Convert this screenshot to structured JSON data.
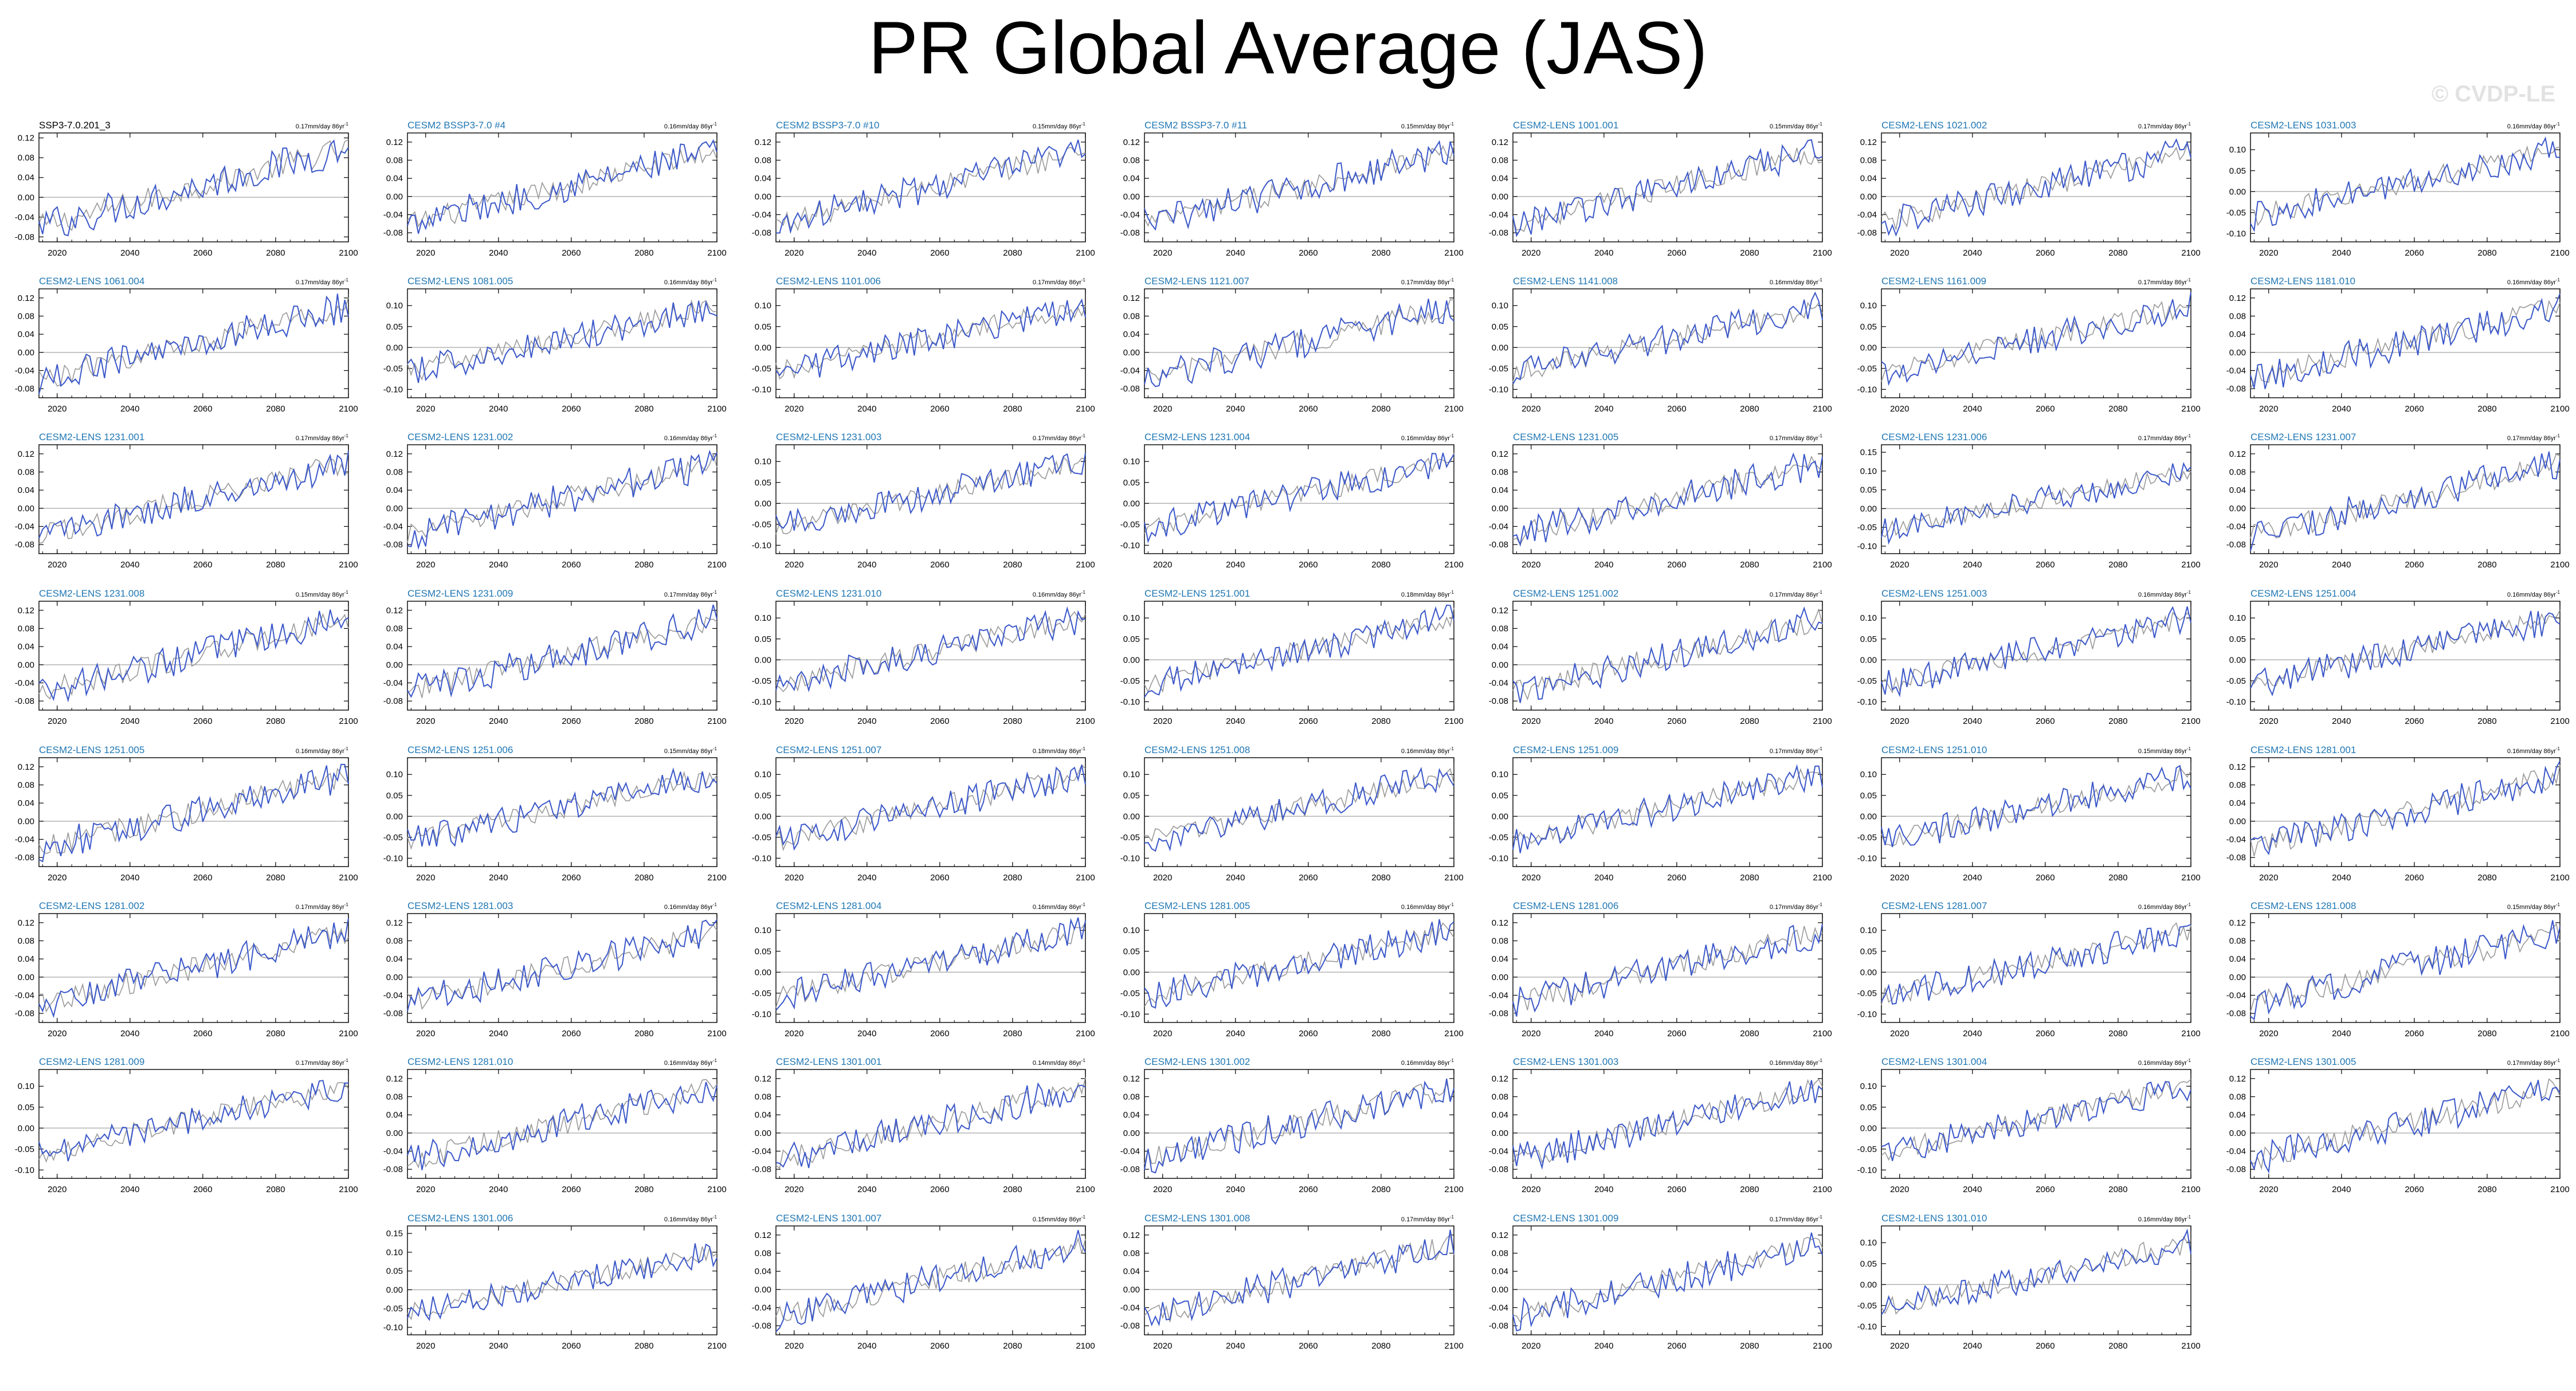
{
  "title": "PR Global Average (JAS)",
  "watermark": "© CVDP-LE",
  "colors": {
    "background": "#ffffff",
    "observed": "#999999",
    "model": "#3a57c9",
    "model_title": "#1f77b4",
    "first_title": "#000000",
    "zero_line": "#b3b3b3"
  },
  "chart_data": [
    {
      "type": "line",
      "title": "SSP3-7.0.201_3",
      "trend": "0.17mm/day 86yr",
      "yticks": [
        0.12,
        0.08,
        0.04,
        0.0,
        -0.04,
        -0.08
      ],
      "ylim": [
        -0.09,
        0.13
      ]
    },
    {
      "type": "line",
      "title": "CESM2 BSSP3-7.0 #4",
      "trend": "0.16mm/day 86yr",
      "yticks": [
        0.12,
        0.08,
        0.04,
        0.0,
        -0.04,
        -0.08
      ],
      "ylim": [
        -0.1,
        0.14
      ]
    },
    {
      "type": "line",
      "title": "CESM2 BSSP3-7.0 #10",
      "trend": "0.15mm/day 86yr",
      "yticks": [
        0.12,
        0.08,
        0.04,
        0.0,
        -0.04,
        -0.08
      ],
      "ylim": [
        -0.1,
        0.14
      ]
    },
    {
      "type": "line",
      "title": "CESM2 BSSP3-7.0 #11",
      "trend": "0.15mm/day 86yr",
      "yticks": [
        0.12,
        0.08,
        0.04,
        0.0,
        -0.04,
        -0.08
      ],
      "ylim": [
        -0.1,
        0.14
      ]
    },
    {
      "type": "line",
      "title": "CESM2-LENS 1001.001",
      "trend": "0.15mm/day 86yr",
      "yticks": [
        0.12,
        0.08,
        0.04,
        0.0,
        -0.04,
        -0.08
      ],
      "ylim": [
        -0.1,
        0.14
      ]
    },
    {
      "type": "line",
      "title": "CESM2-LENS 1021.002",
      "trend": "0.17mm/day 86yr",
      "yticks": [
        0.12,
        0.08,
        0.04,
        0.0,
        -0.04,
        -0.08
      ],
      "ylim": [
        -0.1,
        0.14
      ]
    },
    {
      "type": "line",
      "title": "CESM2-LENS 1031.003",
      "trend": "0.16mm/day 86yr",
      "yticks": [
        0.1,
        0.05,
        0.0,
        -0.05,
        -0.1
      ],
      "ylim": [
        -0.12,
        0.14
      ]
    },
    {
      "type": "line",
      "title": "CESM2-LENS 1061.004",
      "trend": "0.17mm/day 86yr",
      "yticks": [
        0.12,
        0.08,
        0.04,
        0.0,
        -0.04,
        -0.08
      ],
      "ylim": [
        -0.1,
        0.14
      ]
    },
    {
      "type": "line",
      "title": "CESM2-LENS 1081.005",
      "trend": "0.16mm/day 86yr",
      "yticks": [
        0.1,
        0.05,
        0.0,
        -0.05,
        -0.1
      ],
      "ylim": [
        -0.12,
        0.14
      ]
    },
    {
      "type": "line",
      "title": "CESM2-LENS 1101.006",
      "trend": "0.17mm/day 86yr",
      "yticks": [
        0.1,
        0.05,
        0.0,
        -0.05,
        -0.1
      ],
      "ylim": [
        -0.12,
        0.14
      ]
    },
    {
      "type": "line",
      "title": "CESM2-LENS 1121.007",
      "trend": "0.17mm/day 86yr",
      "yticks": [
        0.12,
        0.08,
        0.04,
        0.0,
        -0.04,
        -0.08
      ],
      "ylim": [
        -0.1,
        0.14
      ]
    },
    {
      "type": "line",
      "title": "CESM2-LENS 1141.008",
      "trend": "0.16mm/day 86yr",
      "yticks": [
        0.1,
        0.05,
        0.0,
        -0.05,
        -0.1
      ],
      "ylim": [
        -0.12,
        0.14
      ]
    },
    {
      "type": "line",
      "title": "CESM2-LENS 1161.009",
      "trend": "0.17mm/day 86yr",
      "yticks": [
        0.1,
        0.05,
        0.0,
        -0.05,
        -0.1
      ],
      "ylim": [
        -0.12,
        0.14
      ]
    },
    {
      "type": "line",
      "title": "CESM2-LENS 1181.010",
      "trend": "0.16mm/day 86yr",
      "yticks": [
        0.12,
        0.08,
        0.04,
        0.0,
        -0.04,
        -0.08
      ],
      "ylim": [
        -0.1,
        0.14
      ]
    },
    {
      "type": "line",
      "title": "CESM2-LENS 1231.001",
      "trend": "0.17mm/day 86yr",
      "yticks": [
        0.12,
        0.08,
        0.04,
        0.0,
        -0.04,
        -0.08
      ],
      "ylim": [
        -0.1,
        0.14
      ]
    },
    {
      "type": "line",
      "title": "CESM2-LENS 1231.002",
      "trend": "0.16mm/day 86yr",
      "yticks": [
        0.12,
        0.08,
        0.04,
        0.0,
        -0.04,
        -0.08
      ],
      "ylim": [
        -0.1,
        0.14
      ]
    },
    {
      "type": "line",
      "title": "CESM2-LENS 1231.003",
      "trend": "0.17mm/day 86yr",
      "yticks": [
        0.1,
        0.05,
        0.0,
        -0.05,
        -0.1
      ],
      "ylim": [
        -0.12,
        0.14
      ]
    },
    {
      "type": "line",
      "title": "CESM2-LENS 1231.004",
      "trend": "0.16mm/day 86yr",
      "yticks": [
        0.1,
        0.05,
        0.0,
        -0.05,
        -0.1
      ],
      "ylim": [
        -0.12,
        0.14
      ]
    },
    {
      "type": "line",
      "title": "CESM2-LENS 1231.005",
      "trend": "0.17mm/day 86yr",
      "yticks": [
        0.12,
        0.08,
        0.04,
        0.0,
        -0.04,
        -0.08
      ],
      "ylim": [
        -0.1,
        0.14
      ]
    },
    {
      "type": "line",
      "title": "CESM2-LENS 1231.006",
      "trend": "0.17mm/day 86yr",
      "yticks": [
        0.15,
        0.1,
        0.05,
        0.0,
        -0.05,
        -0.1
      ],
      "ylim": [
        -0.12,
        0.17
      ]
    },
    {
      "type": "line",
      "title": "CESM2-LENS 1231.007",
      "trend": "0.17mm/day 86yr",
      "yticks": [
        0.12,
        0.08,
        0.04,
        0.0,
        -0.04,
        -0.08
      ],
      "ylim": [
        -0.1,
        0.14
      ]
    },
    {
      "type": "line",
      "title": "CESM2-LENS 1231.008",
      "trend": "0.15mm/day 86yr",
      "yticks": [
        0.12,
        0.08,
        0.04,
        0.0,
        -0.04,
        -0.08
      ],
      "ylim": [
        -0.1,
        0.14
      ]
    },
    {
      "type": "line",
      "title": "CESM2-LENS 1231.009",
      "trend": "0.17mm/day 86yr",
      "yticks": [
        0.12,
        0.08,
        0.04,
        0.0,
        -0.04,
        -0.08
      ],
      "ylim": [
        -0.1,
        0.14
      ]
    },
    {
      "type": "line",
      "title": "CESM2-LENS 1231.010",
      "trend": "0.16mm/day 86yr",
      "yticks": [
        0.1,
        0.05,
        0.0,
        -0.05,
        -0.1
      ],
      "ylim": [
        -0.12,
        0.14
      ]
    },
    {
      "type": "line",
      "title": "CESM2-LENS 1251.001",
      "trend": "0.18mm/day 86yr",
      "yticks": [
        0.1,
        0.05,
        0.0,
        -0.05,
        -0.1
      ],
      "ylim": [
        -0.12,
        0.14
      ]
    },
    {
      "type": "line",
      "title": "CESM2-LENS 1251.002",
      "trend": "0.17mm/day 86yr",
      "yticks": [
        0.12,
        0.08,
        0.04,
        0.0,
        -0.04,
        -0.08
      ],
      "ylim": [
        -0.1,
        0.14
      ]
    },
    {
      "type": "line",
      "title": "CESM2-LENS 1251.003",
      "trend": "0.16mm/day 86yr",
      "yticks": [
        0.1,
        0.05,
        0.0,
        -0.05,
        -0.1
      ],
      "ylim": [
        -0.12,
        0.14
      ]
    },
    {
      "type": "line",
      "title": "CESM2-LENS 1251.004",
      "trend": "0.16mm/day 86yr",
      "yticks": [
        0.1,
        0.05,
        0.0,
        -0.05,
        -0.1
      ],
      "ylim": [
        -0.12,
        0.14
      ]
    },
    {
      "type": "line",
      "title": "CESM2-LENS 1251.005",
      "trend": "0.16mm/day 86yr",
      "yticks": [
        0.12,
        0.08,
        0.04,
        0.0,
        -0.04,
        -0.08
      ],
      "ylim": [
        -0.1,
        0.14
      ]
    },
    {
      "type": "line",
      "title": "CESM2-LENS 1251.006",
      "trend": "0.15mm/day 86yr",
      "yticks": [
        0.1,
        0.05,
        0.0,
        -0.05,
        -0.1
      ],
      "ylim": [
        -0.12,
        0.14
      ]
    },
    {
      "type": "line",
      "title": "CESM2-LENS 1251.007",
      "trend": "0.18mm/day 86yr",
      "yticks": [
        0.1,
        0.05,
        0.0,
        -0.05,
        -0.1
      ],
      "ylim": [
        -0.12,
        0.14
      ]
    },
    {
      "type": "line",
      "title": "CESM2-LENS 1251.008",
      "trend": "0.16mm/day 86yr",
      "yticks": [
        0.1,
        0.05,
        0.0,
        -0.05,
        -0.1
      ],
      "ylim": [
        -0.12,
        0.14
      ]
    },
    {
      "type": "line",
      "title": "CESM2-LENS 1251.009",
      "trend": "0.17mm/day 86yr",
      "yticks": [
        0.1,
        0.05,
        0.0,
        -0.05,
        -0.1
      ],
      "ylim": [
        -0.12,
        0.14
      ]
    },
    {
      "type": "line",
      "title": "CESM2-LENS 1251.010",
      "trend": "0.15mm/day 86yr",
      "yticks": [
        0.1,
        0.05,
        0.0,
        -0.05,
        -0.1
      ],
      "ylim": [
        -0.12,
        0.14
      ]
    },
    {
      "type": "line",
      "title": "CESM2-LENS 1281.001",
      "trend": "0.16mm/day 86yr",
      "yticks": [
        0.12,
        0.08,
        0.04,
        0.0,
        -0.04,
        -0.08
      ],
      "ylim": [
        -0.1,
        0.14
      ]
    },
    {
      "type": "line",
      "title": "CESM2-LENS 1281.002",
      "trend": "0.17mm/day 86yr",
      "yticks": [
        0.12,
        0.08,
        0.04,
        0.0,
        -0.04,
        -0.08
      ],
      "ylim": [
        -0.1,
        0.14
      ]
    },
    {
      "type": "line",
      "title": "CESM2-LENS 1281.003",
      "trend": "0.16mm/day 86yr",
      "yticks": [
        0.12,
        0.08,
        0.04,
        0.0,
        -0.04,
        -0.08
      ],
      "ylim": [
        -0.1,
        0.14
      ]
    },
    {
      "type": "line",
      "title": "CESM2-LENS 1281.004",
      "trend": "0.16mm/day 86yr",
      "yticks": [
        0.1,
        0.05,
        0.0,
        -0.05,
        -0.1
      ],
      "ylim": [
        -0.12,
        0.14
      ]
    },
    {
      "type": "line",
      "title": "CESM2-LENS 1281.005",
      "trend": "0.16mm/day 86yr",
      "yticks": [
        0.1,
        0.05,
        0.0,
        -0.05,
        -0.1
      ],
      "ylim": [
        -0.12,
        0.14
      ]
    },
    {
      "type": "line",
      "title": "CESM2-LENS 1281.006",
      "trend": "0.17mm/day 86yr",
      "yticks": [
        0.12,
        0.08,
        0.04,
        0.0,
        -0.04,
        -0.08
      ],
      "ylim": [
        -0.1,
        0.14
      ]
    },
    {
      "type": "line",
      "title": "CESM2-LENS 1281.007",
      "trend": "0.16mm/day 86yr",
      "yticks": [
        0.1,
        0.05,
        0.0,
        -0.05,
        -0.1
      ],
      "ylim": [
        -0.12,
        0.14
      ]
    },
    {
      "type": "line",
      "title": "CESM2-LENS 1281.008",
      "trend": "0.15mm/day 86yr",
      "yticks": [
        0.12,
        0.08,
        0.04,
        0.0,
        -0.04,
        -0.08
      ],
      "ylim": [
        -0.1,
        0.14
      ]
    },
    {
      "type": "line",
      "title": "CESM2-LENS 1281.009",
      "trend": "0.17mm/day 86yr",
      "yticks": [
        0.1,
        0.05,
        0.0,
        -0.05,
        -0.1
      ],
      "ylim": [
        -0.12,
        0.14
      ]
    },
    {
      "type": "line",
      "title": "CESM2-LENS 1281.010",
      "trend": "0.16mm/day 86yr",
      "yticks": [
        0.12,
        0.08,
        0.04,
        0.0,
        -0.04,
        -0.08
      ],
      "ylim": [
        -0.1,
        0.14
      ]
    },
    {
      "type": "line",
      "title": "CESM2-LENS 1301.001",
      "trend": "0.14mm/day 86yr",
      "yticks": [
        0.12,
        0.08,
        0.04,
        0.0,
        -0.04,
        -0.08
      ],
      "ylim": [
        -0.1,
        0.14
      ]
    },
    {
      "type": "line",
      "title": "CESM2-LENS 1301.002",
      "trend": "0.16mm/day 86yr",
      "yticks": [
        0.12,
        0.08,
        0.04,
        0.0,
        -0.04,
        -0.08
      ],
      "ylim": [
        -0.1,
        0.14
      ]
    },
    {
      "type": "line",
      "title": "CESM2-LENS 1301.003",
      "trend": "0.16mm/day 86yr",
      "yticks": [
        0.12,
        0.08,
        0.04,
        0.0,
        -0.04,
        -0.08
      ],
      "ylim": [
        -0.1,
        0.14
      ]
    },
    {
      "type": "line",
      "title": "CESM2-LENS 1301.004",
      "trend": "0.16mm/day 86yr",
      "yticks": [
        0.1,
        0.05,
        0.0,
        -0.05,
        -0.1
      ],
      "ylim": [
        -0.12,
        0.14
      ]
    },
    {
      "type": "line",
      "title": "CESM2-LENS 1301.005",
      "trend": "0.17mm/day 86yr",
      "yticks": [
        0.12,
        0.08,
        0.04,
        0.0,
        -0.04,
        -0.08
      ],
      "ylim": [
        -0.1,
        0.14
      ]
    },
    {
      "type": "line",
      "title": "CESM2-LENS 1301.006",
      "trend": "0.16mm/day 86yr",
      "yticks": [
        0.15,
        0.1,
        0.05,
        0.0,
        -0.05,
        -0.1
      ],
      "ylim": [
        -0.12,
        0.17
      ]
    },
    {
      "type": "line",
      "title": "CESM2-LENS 1301.007",
      "trend": "0.15mm/day 86yr",
      "yticks": [
        0.12,
        0.08,
        0.04,
        0.0,
        -0.04,
        -0.08
      ],
      "ylim": [
        -0.1,
        0.14
      ]
    },
    {
      "type": "line",
      "title": "CESM2-LENS 1301.008",
      "trend": "0.17mm/day 86yr",
      "yticks": [
        0.12,
        0.08,
        0.04,
        0.0,
        -0.04,
        -0.08
      ],
      "ylim": [
        -0.1,
        0.14
      ]
    },
    {
      "type": "line",
      "title": "CESM2-LENS 1301.009",
      "trend": "0.17mm/day 86yr",
      "yticks": [
        0.12,
        0.08,
        0.04,
        0.0,
        -0.04,
        -0.08
      ],
      "ylim": [
        -0.1,
        0.14
      ]
    },
    {
      "type": "line",
      "title": "CESM2-LENS 1301.010",
      "trend": "0.16mm/day 86yr",
      "yticks": [
        0.1,
        0.05,
        0.0,
        -0.05,
        -0.1
      ],
      "ylim": [
        -0.12,
        0.14
      ]
    }
  ],
  "shared_axes": {
    "xticks": [
      2020,
      2040,
      2060,
      2080,
      2100
    ],
    "xlim": [
      2015,
      2100
    ],
    "trend_superscript": "-1",
    "series_start": -0.06,
    "series_end": 0.1
  }
}
